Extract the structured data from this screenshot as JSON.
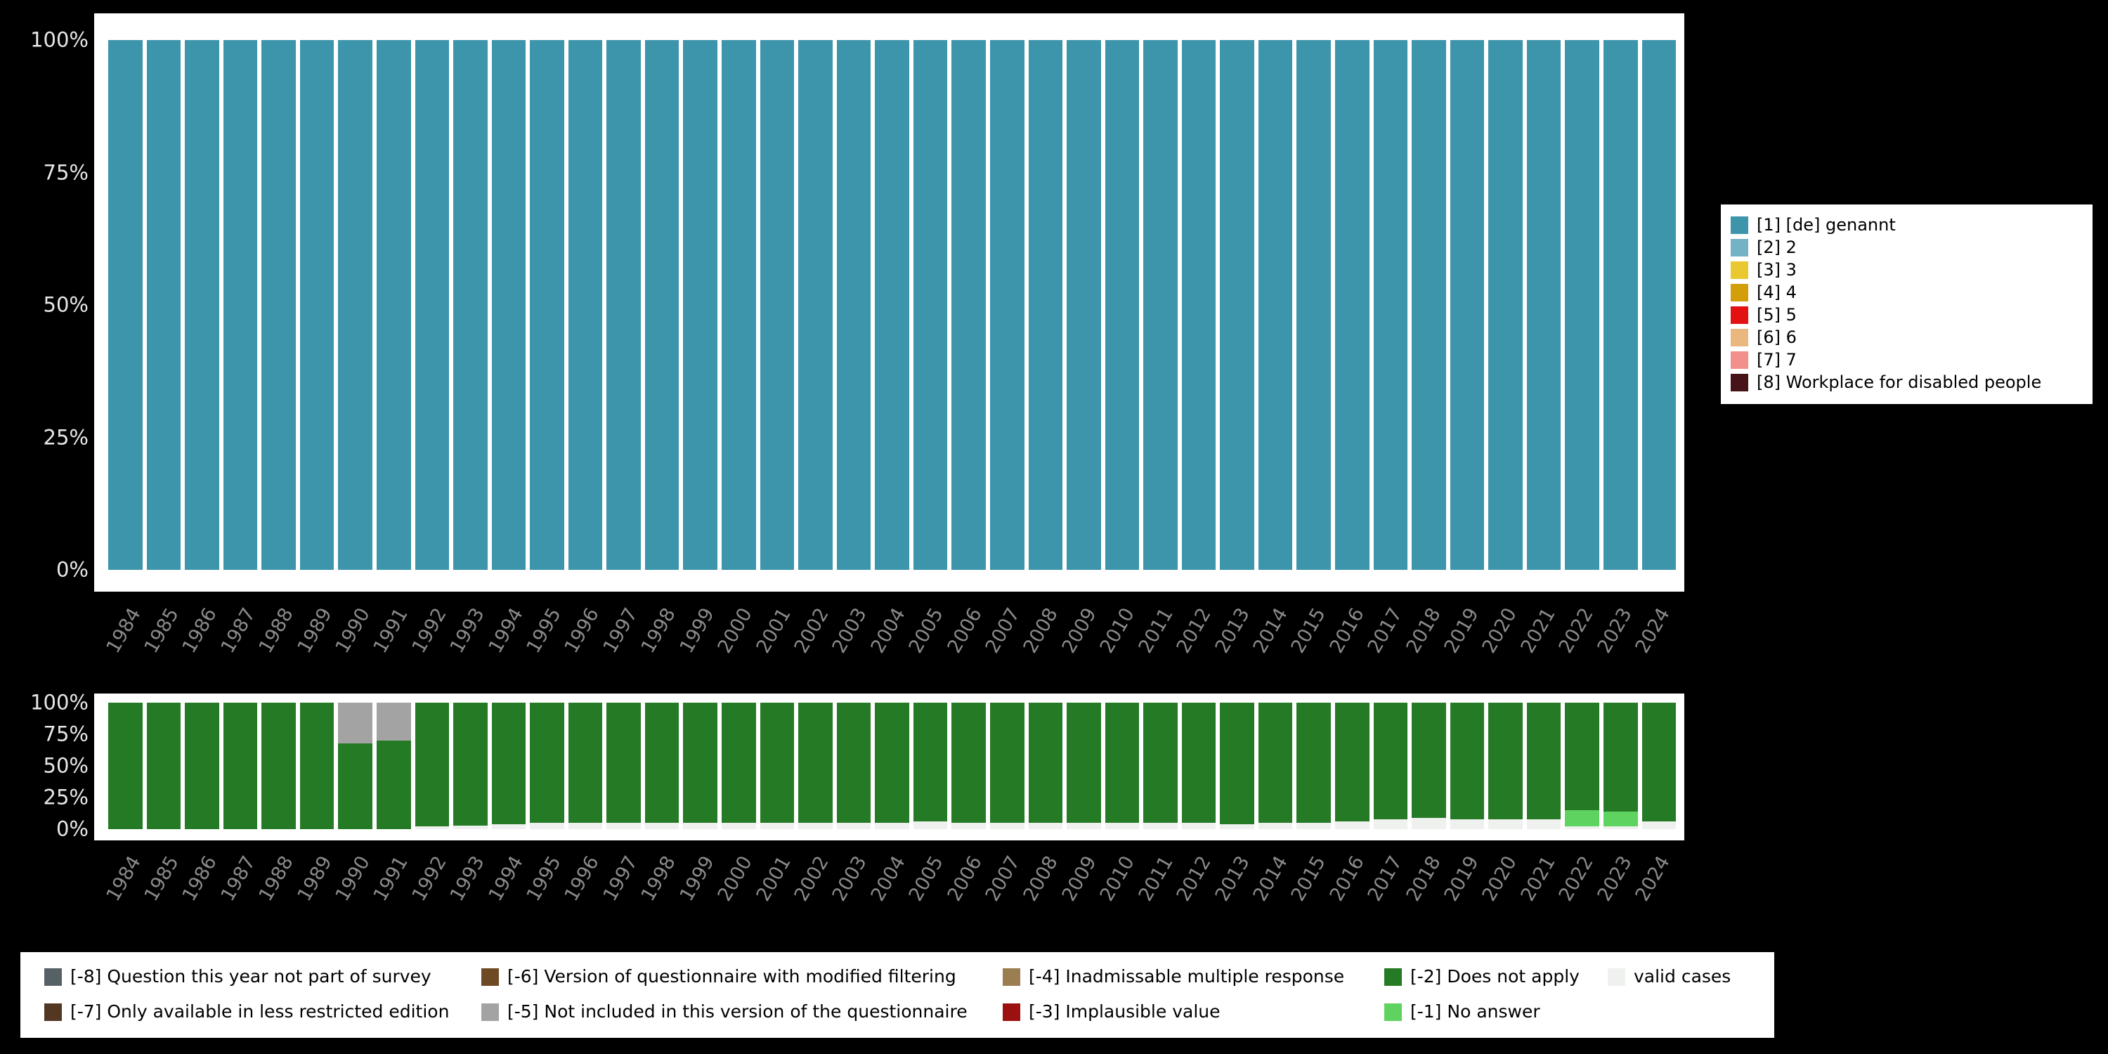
{
  "page": {
    "background": "#000000",
    "panel_background": "#ffffff",
    "axis_percent_label_color": "#e8e8e8",
    "axis_year_label_color": "#8a8a8a"
  },
  "chart_data": [
    {
      "type": "bar",
      "stacked": true,
      "unit": "percent",
      "title": "",
      "xlabel": "",
      "ylabel": "",
      "ylim": [
        0,
        100
      ],
      "grid": false,
      "categories": [
        "1984",
        "1985",
        "1986",
        "1987",
        "1988",
        "1989",
        "1990",
        "1991",
        "1992",
        "1993",
        "1994",
        "1995",
        "1996",
        "1997",
        "1998",
        "1999",
        "2000",
        "2001",
        "2002",
        "2003",
        "2004",
        "2005",
        "2006",
        "2007",
        "2008",
        "2009",
        "2010",
        "2011",
        "2012",
        "2013",
        "2014",
        "2015",
        "2016",
        "2017",
        "2018",
        "2019",
        "2020",
        "2021",
        "2022",
        "2023",
        "2024"
      ],
      "yticks": [
        {
          "label": "0%",
          "value": 0
        },
        {
          "label": "25%",
          "value": 25
        },
        {
          "label": "50%",
          "value": 50
        },
        {
          "label": "75%",
          "value": 75
        },
        {
          "label": "100%",
          "value": 100
        }
      ],
      "series": [
        {
          "name": "[1] [de] genannt",
          "color": "#3d95ab",
          "values": [
            100,
            100,
            100,
            100,
            100,
            100,
            100,
            100,
            100,
            100,
            100,
            100,
            100,
            100,
            100,
            100,
            100,
            100,
            100,
            100,
            100,
            100,
            100,
            100,
            100,
            100,
            100,
            100,
            100,
            100,
            100,
            100,
            100,
            100,
            100,
            100,
            100,
            100,
            100,
            100,
            100
          ]
        }
      ]
    },
    {
      "type": "bar",
      "stacked": true,
      "unit": "percent",
      "title": "",
      "xlabel": "",
      "ylabel": "",
      "ylim": [
        0,
        100
      ],
      "grid": false,
      "categories": [
        "1984",
        "1985",
        "1986",
        "1987",
        "1988",
        "1989",
        "1990",
        "1991",
        "1992",
        "1993",
        "1994",
        "1995",
        "1996",
        "1997",
        "1998",
        "1999",
        "2000",
        "2001",
        "2002",
        "2003",
        "2004",
        "2005",
        "2006",
        "2007",
        "2008",
        "2009",
        "2010",
        "2011",
        "2012",
        "2013",
        "2014",
        "2015",
        "2016",
        "2017",
        "2018",
        "2019",
        "2020",
        "2021",
        "2022",
        "2023",
        "2024"
      ],
      "yticks": [
        {
          "label": "0%",
          "value": 0
        },
        {
          "label": "25%",
          "value": 25
        },
        {
          "label": "50%",
          "value": 50
        },
        {
          "label": "75%",
          "value": 75
        },
        {
          "label": "100%",
          "value": 100
        }
      ],
      "series": [
        {
          "name": "valid cases",
          "color": "#eef1ee",
          "values": [
            0,
            0,
            0,
            0,
            0,
            0,
            0,
            0,
            2,
            3,
            4,
            5,
            5,
            5,
            5,
            5,
            5,
            5,
            5,
            5,
            5,
            6,
            5,
            5,
            5,
            5,
            5,
            5,
            5,
            4,
            5,
            5,
            6,
            8,
            9,
            8,
            8,
            8,
            2,
            2,
            6
          ]
        },
        {
          "name": "[-1] No answer",
          "color": "#5fd35f",
          "values": [
            0,
            0,
            0,
            0,
            0,
            0,
            0,
            0,
            0,
            0,
            0,
            0,
            0,
            0,
            0,
            0,
            0,
            0,
            0,
            0,
            0,
            0,
            0,
            0,
            0,
            0,
            0,
            0,
            0,
            0,
            0,
            0,
            0,
            0,
            0,
            0,
            0,
            0,
            13,
            12,
            0
          ]
        },
        {
          "name": "[-2] Does not apply",
          "color": "#257a25",
          "values": [
            100,
            100,
            100,
            100,
            100,
            100,
            68,
            70,
            98,
            97,
            96,
            95,
            95,
            95,
            95,
            95,
            95,
            95,
            95,
            95,
            95,
            94,
            95,
            95,
            95,
            95,
            95,
            95,
            95,
            96,
            95,
            95,
            94,
            92,
            91,
            92,
            92,
            92,
            85,
            86,
            94
          ]
        },
        {
          "name": "[-5] Not included in this version of the questionnaire",
          "color": "#a3a3a3",
          "values": [
            0,
            0,
            0,
            0,
            0,
            0,
            32,
            30,
            0,
            0,
            0,
            0,
            0,
            0,
            0,
            0,
            0,
            0,
            0,
            0,
            0,
            0,
            0,
            0,
            0,
            0,
            0,
            0,
            0,
            0,
            0,
            0,
            0,
            0,
            0,
            0,
            0,
            0,
            0,
            0,
            0
          ]
        }
      ]
    }
  ],
  "category_legend": {
    "items": [
      {
        "label": "[1] [de] genannt",
        "color": "#3d95ab"
      },
      {
        "label": "[2] 2",
        "color": "#74b3c6"
      },
      {
        "label": "[3] 3",
        "color": "#e9c832"
      },
      {
        "label": "[4] 4",
        "color": "#d39e08"
      },
      {
        "label": "[5] 5",
        "color": "#e31111"
      },
      {
        "label": "[6] 6",
        "color": "#eab87f"
      },
      {
        "label": "[7] 7",
        "color": "#f2918c"
      },
      {
        "label": "[8] Workplace for disabled people",
        "color": "#451318"
      }
    ]
  },
  "missing_legend": {
    "items": [
      {
        "label": "[-8] Question this year not part of survey",
        "color": "#566166"
      },
      {
        "label": "[-6] Version of questionnaire with modified filtering",
        "color": "#6e4a24"
      },
      {
        "label": "[-4] Inadmissable multiple response",
        "color": "#9b7d52"
      },
      {
        "label": "[-2] Does not apply",
        "color": "#257a25"
      },
      {
        "label": "valid cases",
        "color": "#eef1ee"
      },
      {
        "label": "[-7] Only available in less restricted edition",
        "color": "#543722"
      },
      {
        "label": "[-5] Not included in this version of the questionnaire",
        "color": "#a3a3a3"
      },
      {
        "label": "[-3] Implausible value",
        "color": "#9c1010"
      },
      {
        "label": "[-1] No answer",
        "color": "#5fd35f"
      }
    ]
  }
}
